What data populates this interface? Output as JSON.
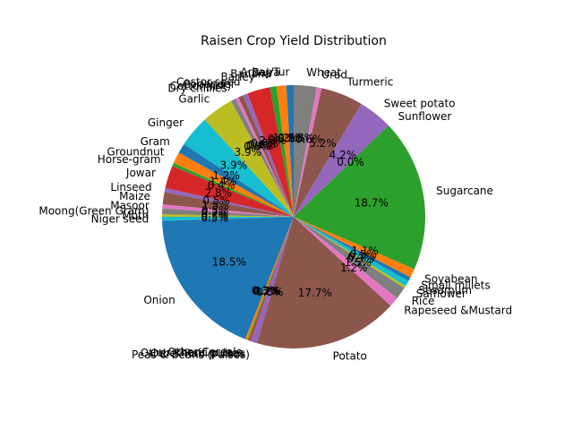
{
  "chart_data": {
    "type": "pie",
    "title": "Raisen Crop Yield Distribution",
    "labels": [
      "Arhar/Tur",
      "Bajra",
      "Banana",
      "Barley",
      "Castor seed",
      "Coriander",
      "Cotton(lint)",
      "Dry chillies",
      "Garlic",
      "Ginger",
      "Gram",
      "Groundnut",
      "Horse-gram",
      "Jowar",
      "Linseed",
      "Maize",
      "Masoor",
      "Moong(Green Gram)",
      "Moth",
      "Niger seed",
      "Onion",
      "Other Cereals",
      "Other Kharif pulses",
      "Other Rabi pulses",
      "Peas & beans (Pulses)",
      "Potato",
      "Rapeseed &Mustard",
      "Rice",
      "Safflower",
      "Sesamum",
      "Small millets",
      "Soyabean",
      "Sugarcane",
      "Sunflower",
      "Sweet potato",
      "Turmeric",
      "Urad",
      "Wheat"
    ],
    "values": [
      0.9,
      1.2,
      0.8,
      2.8,
      0.6,
      0.6,
      0.4,
      0.6,
      3.9,
      3.9,
      1.2,
      1.4,
      0.4,
      2.8,
      0.5,
      1.5,
      0.5,
      0.7,
      0.3,
      0.5,
      18.5,
      0.3,
      0.2,
      0.2,
      0.8,
      17.7,
      1.2,
      1.5,
      0.3,
      0.7,
      0.5,
      1.1,
      18.7,
      0.0,
      4.2,
      5.2,
      0.6,
      2.8
    ],
    "pct_labels": [
      "0.9%",
      "1.2%",
      "0.8%",
      "2.8%",
      "0.6%",
      "0.6%",
      "0.4%",
      "0.6%",
      "3.9%",
      "3.9%",
      "1.2%",
      "1.4%",
      "0.4%",
      "2.8%",
      "0.5%",
      "1.5%",
      "0.5%",
      "0.7%",
      "0.3%",
      "0.5%",
      "18.5%",
      "0.3%",
      "0.2%",
      "0.2%",
      "0.8%",
      "17.7%",
      "1.2%",
      "1.5%",
      "0.3%",
      "0.7%",
      "0.5%",
      "1.1%",
      "18.7%",
      "0.0%",
      "4.2%",
      "5.2%",
      "0.6%",
      "2.8%"
    ],
    "colors": [
      "#1f77b4",
      "#ff7f0e",
      "#2ca02c",
      "#d62728",
      "#9467bd",
      "#8c564b",
      "#e377c2",
      "#7f7f7f",
      "#bcbd22",
      "#17becf"
    ],
    "start_angle": 90,
    "direction": "counterclockwise",
    "legend": "none",
    "label_placement": "outside"
  }
}
